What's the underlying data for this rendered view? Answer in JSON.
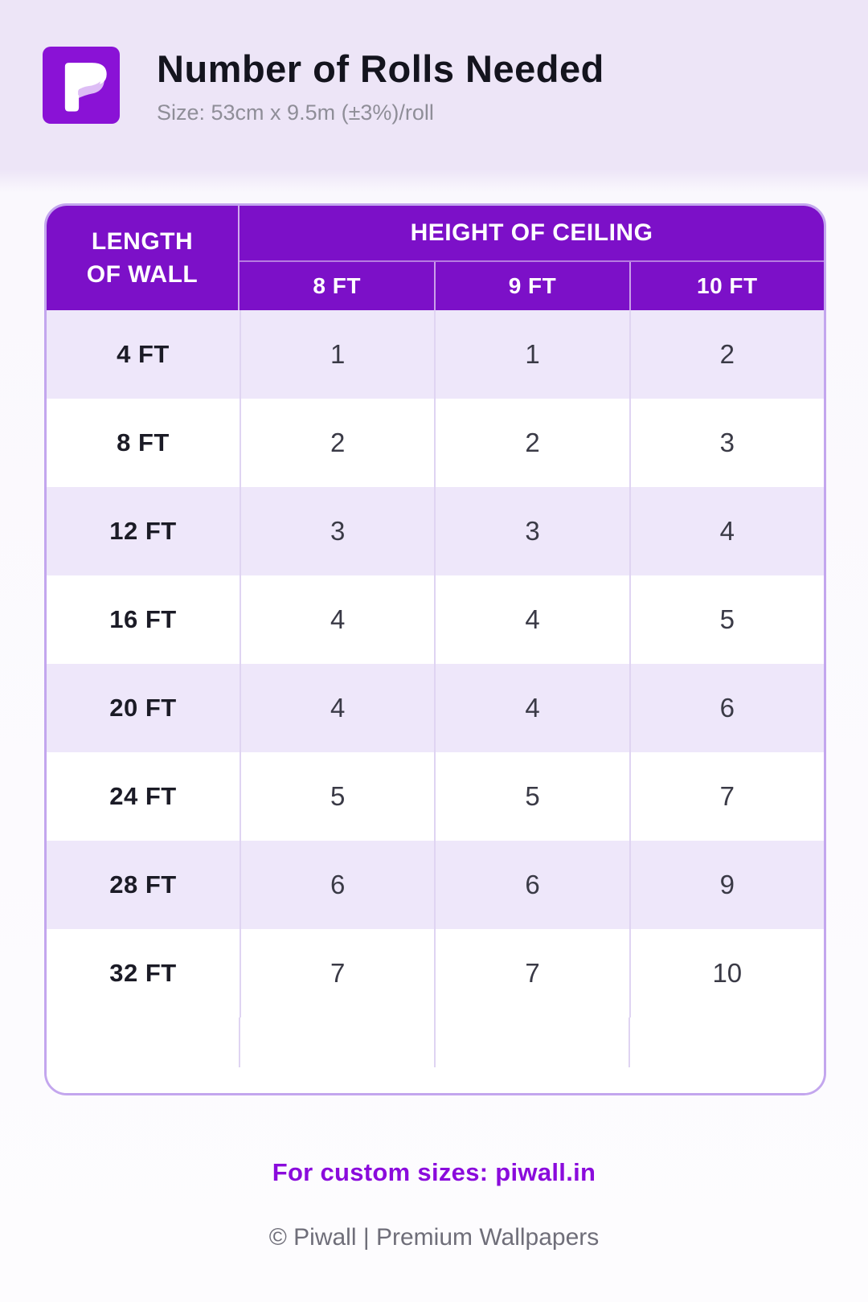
{
  "colors": {
    "header_purple": "#7C10C8",
    "logo_purple": "#8A12D6",
    "accent_purple": "#8A0BDC",
    "row_alt_lavender": "#EEE7FA",
    "table_border": "#C3A6EE",
    "title_text": "#14141E",
    "subtitle_text": "#8F8E98",
    "value_text": "#3A3A46"
  },
  "header": {
    "logo_icon": "piwall-p-logo",
    "title": "Number of Rolls Needed",
    "subtitle": "Size: 53cm x 9.5m (±3%)/roll"
  },
  "table": {
    "row_header": {
      "line1": "LENGTH",
      "line2": "OF WALL"
    },
    "group_header": "HEIGHT OF CEILING",
    "columns": [
      "8 FT",
      "9 FT",
      "10 FT"
    ],
    "rows": [
      {
        "label": "4 FT",
        "values": [
          "1",
          "1",
          "2"
        ]
      },
      {
        "label": "8 FT",
        "values": [
          "2",
          "2",
          "3"
        ]
      },
      {
        "label": "12 FT",
        "values": [
          "3",
          "3",
          "4"
        ]
      },
      {
        "label": "16 FT",
        "values": [
          "4",
          "4",
          "5"
        ]
      },
      {
        "label": "20 FT",
        "values": [
          "4",
          "4",
          "6"
        ]
      },
      {
        "label": "24 FT",
        "values": [
          "5",
          "5",
          "7"
        ]
      },
      {
        "label": "28 FT",
        "values": [
          "6",
          "6",
          "9"
        ]
      },
      {
        "label": "32 FT",
        "values": [
          "7",
          "7",
          "10"
        ]
      }
    ]
  },
  "footer": {
    "custom_note": "For custom sizes: piwall.in",
    "copyright": "© Piwall | Premium Wallpapers"
  },
  "chart_data": {
    "type": "table",
    "title": "Number of Rolls Needed",
    "subtitle": "Size: 53cm x 9.5m (±3%)/roll",
    "row_dimension": "LENGTH OF WALL",
    "column_dimension": "HEIGHT OF CEILING",
    "categories": [
      "4 FT",
      "8 FT",
      "12 FT",
      "16 FT",
      "20 FT",
      "24 FT",
      "28 FT",
      "32 FT"
    ],
    "series": [
      {
        "name": "8 FT",
        "values": [
          1,
          2,
          3,
          4,
          4,
          5,
          6,
          7
        ]
      },
      {
        "name": "9 FT",
        "values": [
          1,
          2,
          3,
          4,
          4,
          5,
          6,
          7
        ]
      },
      {
        "name": "10 FT",
        "values": [
          2,
          3,
          4,
          5,
          6,
          7,
          9,
          10
        ]
      }
    ]
  }
}
